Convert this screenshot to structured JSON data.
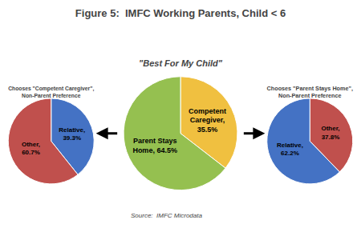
{
  "chart_data": [
    {
      "type": "pie",
      "title": "Figure 5:  IMFC Working Parents, Child < 6",
      "subtitle": "\"Best For My Child\"",
      "annotations": [
        "Source:  IMFC Microdata"
      ],
      "labels": [
        "Competent\nCaregiver,\n35.5%",
        "Parent Stays\nHome, 64.5%"
      ],
      "values": [
        35.5,
        64.5
      ],
      "colors": [
        "#F0C040",
        "#95C050"
      ]
    },
    {
      "type": "pie",
      "title": "Chooses \"Competent Caregiver\",\nNon-Parent Preference",
      "labels": [
        "Relative,\n39.3%",
        "Other,\n60.7%"
      ],
      "values": [
        39.3,
        60.7
      ],
      "colors": [
        "#4472C4",
        "#C0504D"
      ]
    },
    {
      "type": "pie",
      "title": "Chooses \"Parent Stays Home\",\nNon-Parent Preference",
      "labels": [
        "Other,\n37.8%",
        "Relative,\n62.2%"
      ],
      "values": [
        37.8,
        62.2
      ],
      "colors": [
        "#C0504D",
        "#4472C4"
      ]
    }
  ]
}
